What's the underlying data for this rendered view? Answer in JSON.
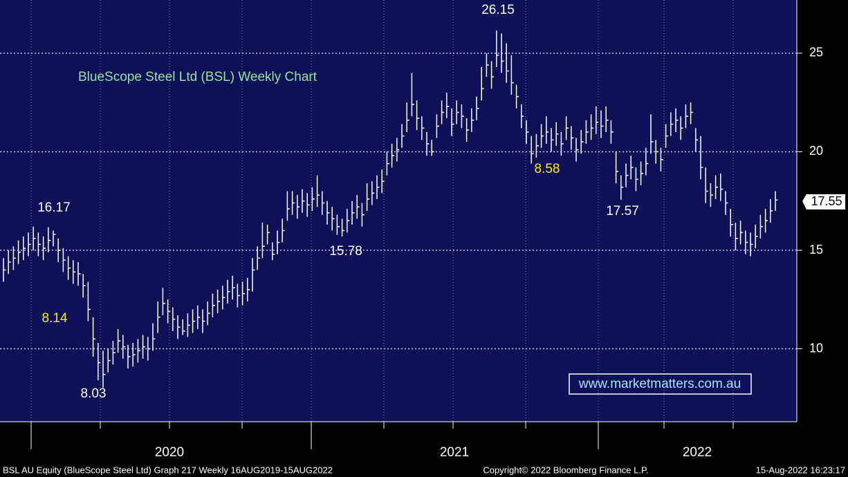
{
  "chart_data": {
    "type": "ohlc",
    "title": "BlueScope Steel Ltd (BSL) Weekly Chart",
    "x_axis_labels": [
      "2020",
      "2021",
      "2022"
    ],
    "ylim": [
      6.3,
      27.7
    ],
    "yticks": [
      10,
      15,
      20,
      25
    ],
    "grid": true,
    "color": "#ffffff",
    "close": [
      14.0,
      14.4,
      14.6,
      14.9,
      15.1,
      15.3,
      15.6,
      15.3,
      15.1,
      15.5,
      15.8,
      15.0,
      14.5,
      14.1,
      13.9,
      13.8,
      13.2,
      12.0,
      10.5,
      9.3,
      8.7,
      9.4,
      9.8,
      10.4,
      10.1,
      9.6,
      9.7,
      9.9,
      10.1,
      10.0,
      10.5,
      11.6,
      12.3,
      11.9,
      11.5,
      11.1,
      10.9,
      11.2,
      11.4,
      11.6,
      11.4,
      11.8,
      12.2,
      12.4,
      12.6,
      12.9,
      13.1,
      12.7,
      12.8,
      13.0,
      14.0,
      14.6,
      15.2,
      15.9,
      14.8,
      15.4,
      16.0,
      17.1,
      17.4,
      17.2,
      17.5,
      17.3,
      17.6,
      17.8,
      17.4,
      16.9,
      16.6,
      16.2,
      16.0,
      16.5,
      16.9,
      17.2,
      16.8,
      17.6,
      17.9,
      18.2,
      18.5,
      19.4,
      19.8,
      20.1,
      20.8,
      21.6,
      22.4,
      21.7,
      21.2,
      20.4,
      20.0,
      21.3,
      22.0,
      22.3,
      21.4,
      22.0,
      21.8,
      21.1,
      21.6,
      22.2,
      23.2,
      24.4,
      23.8,
      24.9,
      24.6,
      24.1,
      23.5,
      22.8,
      21.8,
      21.0,
      19.9,
      20.3,
      20.8,
      21.0,
      20.6,
      20.9,
      20.4,
      21.2,
      20.7,
      20.1,
      20.5,
      21.0,
      21.2,
      21.5,
      21.3,
      21.6,
      21.0,
      19.0,
      18.2,
      18.8,
      19.2,
      18.6,
      18.9,
      19.4,
      20.5,
      20.0,
      19.6,
      20.8,
      21.4,
      21.6,
      21.2,
      21.8,
      22.0,
      20.6,
      19.2,
      18.0,
      17.8,
      18.2,
      18.1,
      17.4,
      16.3,
      15.6,
      15.9,
      15.4,
      15.3,
      15.7,
      16.2,
      16.5,
      17.0,
      17.55
    ],
    "high": [
      14.6,
      15.0,
      15.2,
      15.5,
      15.7,
      15.9,
      16.2,
      15.9,
      15.7,
      16.17,
      16.0,
      15.6,
      15.1,
      14.7,
      14.5,
      14.4,
      13.8,
      13.4,
      11.6,
      10.3,
      9.9,
      10.0,
      10.4,
      11.0,
      10.7,
      10.2,
      10.3,
      10.5,
      10.7,
      10.6,
      11.3,
      12.4,
      13.1,
      12.5,
      12.1,
      11.7,
      11.5,
      11.8,
      12.0,
      12.2,
      12.0,
      12.4,
      12.8,
      13.0,
      13.2,
      13.5,
      13.7,
      13.3,
      13.4,
      13.6,
      14.6,
      15.2,
      16.4,
      16.3,
      15.4,
      16.0,
      16.6,
      18.0,
      18.0,
      17.8,
      18.1,
      17.9,
      18.2,
      18.8,
      18.0,
      17.5,
      17.2,
      16.8,
      16.6,
      17.1,
      17.5,
      17.8,
      17.4,
      18.4,
      18.5,
      18.8,
      19.1,
      20.0,
      20.4,
      20.7,
      21.4,
      22.5,
      24.0,
      22.6,
      21.8,
      21.0,
      20.6,
      21.9,
      22.6,
      23.0,
      22.2,
      22.6,
      22.4,
      21.7,
      22.2,
      22.8,
      24.3,
      25.0,
      24.6,
      26.15,
      26.0,
      25.5,
      24.9,
      23.4,
      22.4,
      21.6,
      20.8,
      20.9,
      21.4,
      21.8,
      21.2,
      21.5,
      21.0,
      21.8,
      21.3,
      20.7,
      21.1,
      21.6,
      21.9,
      22.3,
      22.1,
      22.3,
      21.6,
      20.0,
      18.8,
      19.4,
      19.8,
      19.2,
      19.5,
      20.2,
      21.9,
      20.6,
      20.2,
      21.4,
      22.0,
      22.2,
      21.8,
      22.4,
      22.5,
      21.2,
      20.8,
      19.2,
      18.4,
      18.8,
      18.9,
      18.0,
      17.1,
      16.4,
      16.5,
      16.0,
      15.9,
      16.3,
      16.8,
      17.1,
      17.6,
      18.0
    ],
    "low": [
      13.4,
      13.8,
      14.0,
      14.3,
      14.5,
      14.7,
      15.0,
      14.7,
      14.5,
      14.9,
      15.2,
      14.4,
      13.9,
      13.5,
      13.3,
      13.2,
      12.6,
      11.4,
      9.6,
      8.4,
      8.03,
      8.8,
      9.2,
      9.8,
      9.5,
      9.0,
      9.1,
      9.3,
      9.5,
      9.4,
      9.9,
      10.8,
      11.7,
      11.3,
      10.9,
      10.5,
      10.7,
      10.6,
      10.8,
      11.0,
      10.8,
      11.2,
      11.6,
      11.8,
      12.0,
      12.3,
      12.5,
      12.1,
      12.2,
      12.4,
      12.9,
      14.0,
      14.6,
      15.3,
      14.5,
      14.8,
      15.4,
      16.5,
      16.8,
      16.6,
      16.9,
      16.7,
      17.0,
      17.2,
      16.8,
      16.3,
      16.0,
      15.78,
      15.7,
      15.9,
      16.3,
      16.6,
      16.2,
      17.0,
      17.3,
      17.6,
      17.9,
      18.8,
      19.2,
      19.5,
      20.2,
      21.0,
      21.8,
      21.1,
      20.6,
      19.8,
      19.8,
      20.7,
      21.4,
      21.7,
      20.8,
      21.4,
      21.2,
      20.5,
      21.0,
      21.6,
      22.6,
      23.8,
      23.2,
      24.3,
      24.0,
      23.5,
      22.9,
      22.2,
      21.2,
      20.4,
      19.4,
      19.7,
      20.2,
      20.4,
      20.0,
      20.3,
      19.8,
      20.6,
      20.1,
      19.5,
      19.9,
      20.4,
      20.6,
      20.9,
      20.7,
      21.0,
      20.4,
      18.4,
      17.57,
      18.2,
      18.6,
      18.0,
      18.3,
      18.8,
      19.9,
      19.4,
      19.0,
      20.2,
      20.8,
      21.0,
      20.6,
      21.2,
      21.4,
      20.0,
      18.6,
      17.4,
      17.2,
      17.6,
      17.5,
      16.8,
      15.7,
      15.0,
      15.3,
      14.8,
      14.7,
      15.1,
      15.6,
      15.9,
      16.4,
      17.0
    ],
    "last_price": "17.55",
    "annotations": [
      "16.17",
      "8.14",
      "8.03",
      "15.78",
      "26.15",
      "8.58",
      "17.57"
    ],
    "watermark": "www.marketmatters.com.au",
    "footer": [
      "BSL AU Equity (BlueScope Steel Ltd) Graph 217  Weekly 16AUG2019-15AUG2022",
      "Copyright© 2022 Bloomberg Finance L.P.",
      "15-Aug-2022 16:23:17"
    ]
  }
}
